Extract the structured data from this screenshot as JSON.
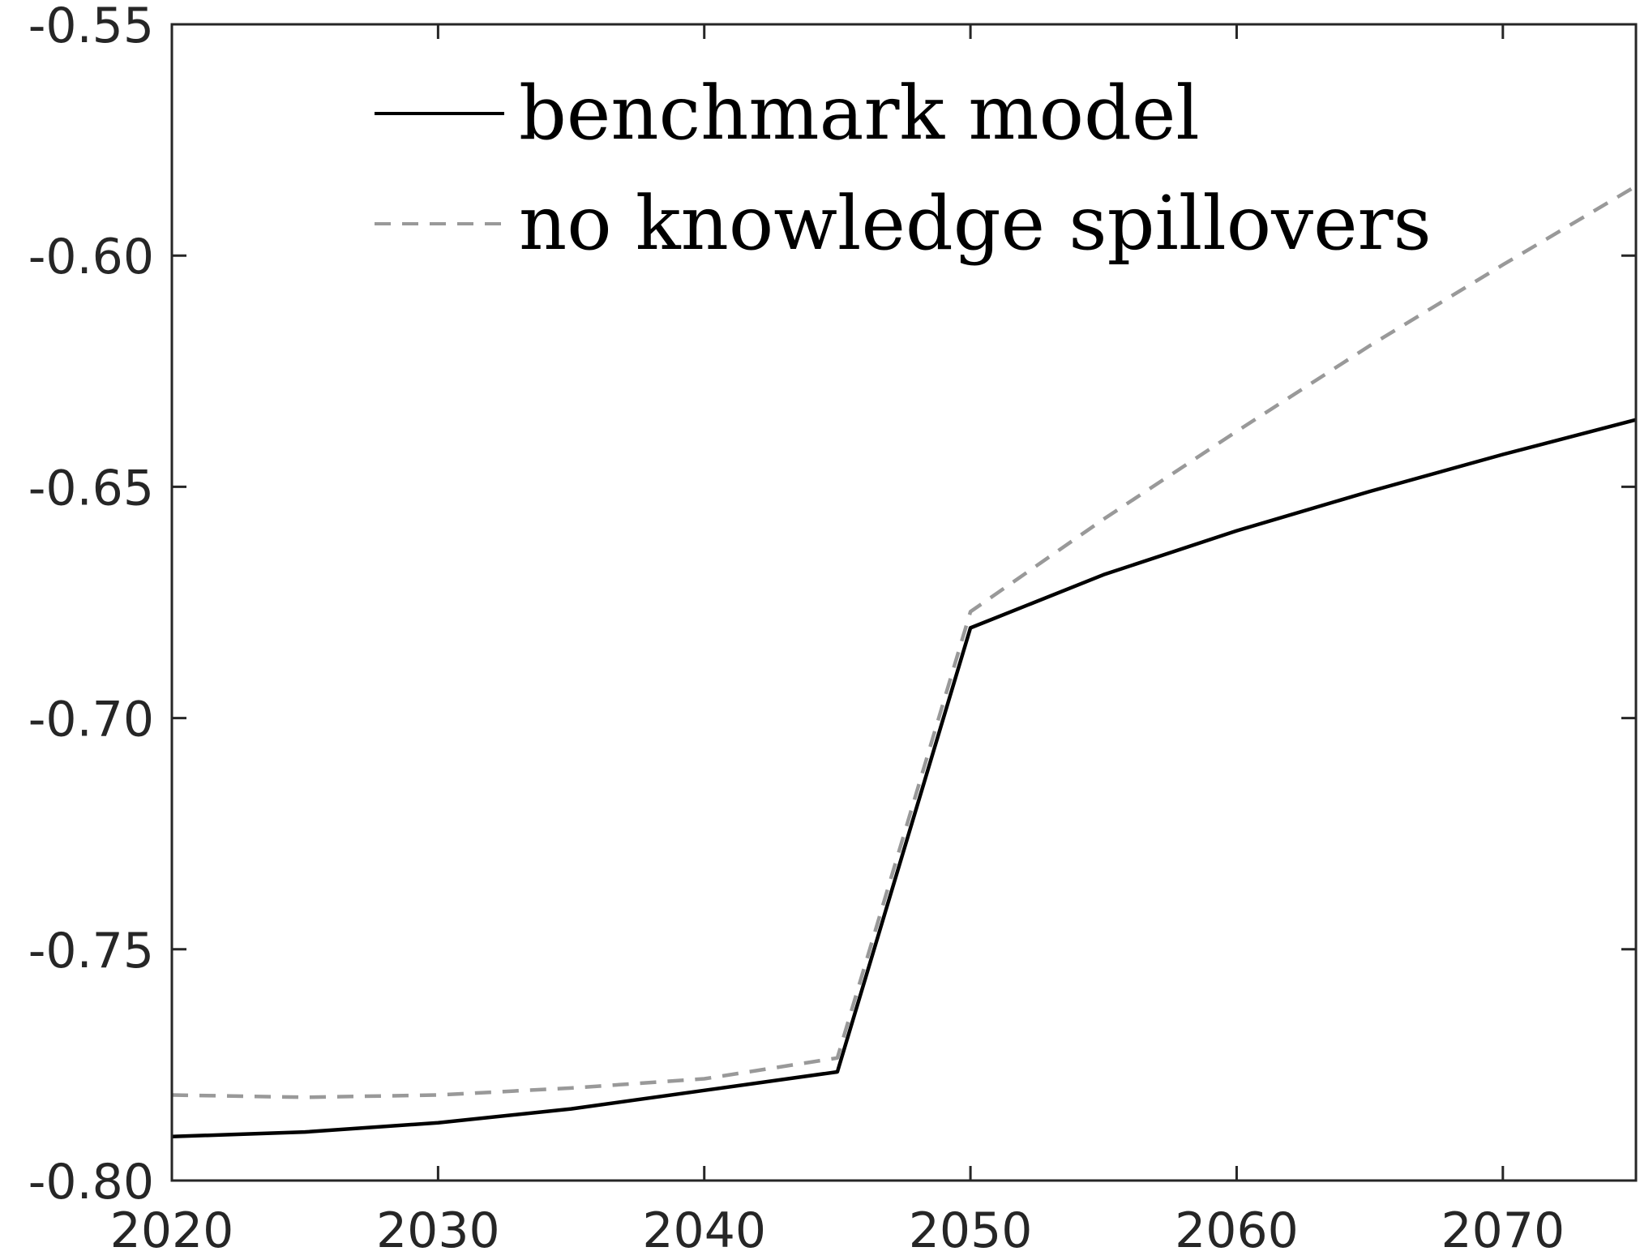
{
  "chart_data": {
    "type": "line",
    "title": "",
    "xlabel": "",
    "ylabel": "",
    "xlim": [
      2020,
      2075
    ],
    "ylim": [
      -0.8,
      -0.55
    ],
    "xticks": [
      2020,
      2030,
      2040,
      2050,
      2060,
      2070
    ],
    "yticks": [
      -0.8,
      -0.75,
      -0.7,
      -0.65,
      -0.6,
      -0.55
    ],
    "xtick_labels": [
      "2020",
      "2030",
      "2040",
      "2050",
      "2060",
      "2070"
    ],
    "ytick_labels": [
      "-0.80",
      "-0.75",
      "-0.70",
      "-0.65",
      "-0.60",
      "-0.55"
    ],
    "grid": false,
    "legend_position": "top-center",
    "x": [
      2020,
      2025,
      2030,
      2035,
      2040,
      2045,
      2050,
      2055,
      2060,
      2065,
      2070,
      2075
    ],
    "series": [
      {
        "name": "benchmark model",
        "values": [
          -0.7905,
          -0.7895,
          -0.7875,
          -0.7845,
          -0.7805,
          -0.7765,
          -0.6805,
          -0.669,
          -0.6595,
          -0.651,
          -0.643,
          -0.6355
        ],
        "color": "#000000",
        "style": "solid"
      },
      {
        "name": "no knowledge spillovers",
        "values": [
          -0.7815,
          -0.782,
          -0.7815,
          -0.78,
          -0.778,
          -0.7735,
          -0.677,
          -0.657,
          -0.638,
          -0.6195,
          -0.602,
          -0.585
        ],
        "color": "#999999",
        "style": "dashed"
      }
    ]
  }
}
